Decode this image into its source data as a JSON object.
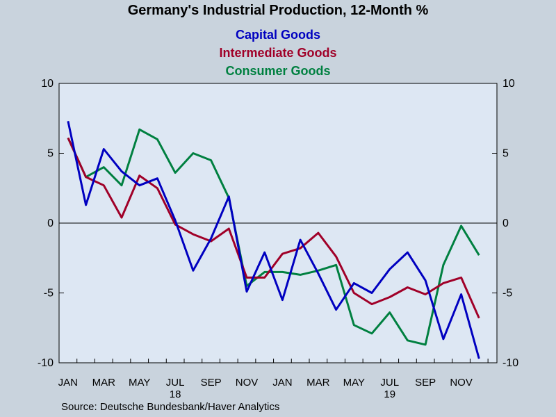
{
  "chart_data": {
    "type": "line",
    "title": "Germany's Industrial Production, 12-Month %",
    "source": "Source:  Deutsche Bundesbank/Haver Analytics",
    "ylim": [
      -10,
      10
    ],
    "yticks": [
      10,
      5,
      0,
      -5,
      -10
    ],
    "x_tick_labels": [
      "JAN",
      "MAR",
      "MAY",
      "JUL",
      "SEP",
      "NOV",
      "JAN",
      "MAR",
      "MAY",
      "JUL",
      "SEP",
      "NOV"
    ],
    "x_tick_label_months": [
      0,
      2,
      4,
      6,
      8,
      10,
      12,
      14,
      16,
      18,
      20,
      22
    ],
    "year_labels": [
      {
        "label": "18",
        "month": 6
      },
      {
        "label": "19",
        "month": 18
      }
    ],
    "months": 24,
    "zero_line": true,
    "series": [
      {
        "name": "Capital Goods",
        "color": "#0000c0",
        "values": [
          7.3,
          1.3,
          5.3,
          3.7,
          2.7,
          3.2,
          0.2,
          -3.4,
          -1.1,
          1.9,
          -4.9,
          -2.1,
          -5.5,
          -1.2,
          -3.6,
          -6.2,
          -4.3,
          -5.0,
          -3.3,
          -2.1,
          -4.1,
          -8.3,
          -5.1,
          -9.7
        ]
      },
      {
        "name": "Intermediate Goods",
        "color": "#a00028",
        "values": [
          6.1,
          3.3,
          2.7,
          0.4,
          3.4,
          2.5,
          -0.1,
          -0.8,
          -1.3,
          -0.4,
          -3.9,
          -3.9,
          -2.2,
          -1.8,
          -0.7,
          -2.4,
          -5.0,
          -5.8,
          -5.3,
          -4.6,
          -5.1,
          -4.3,
          -3.9,
          -6.8
        ]
      },
      {
        "name": "Consumer Goods",
        "color": "#008040",
        "values": [
          6.1,
          3.3,
          4.0,
          2.7,
          6.7,
          6.0,
          3.6,
          5.0,
          4.5,
          1.8,
          -4.5,
          -3.5,
          -3.5,
          -3.7,
          -3.4,
          -3.0,
          -7.3,
          -7.9,
          -6.4,
          -8.4,
          -8.7,
          -3.0,
          -0.2,
          -2.3
        ]
      }
    ]
  }
}
